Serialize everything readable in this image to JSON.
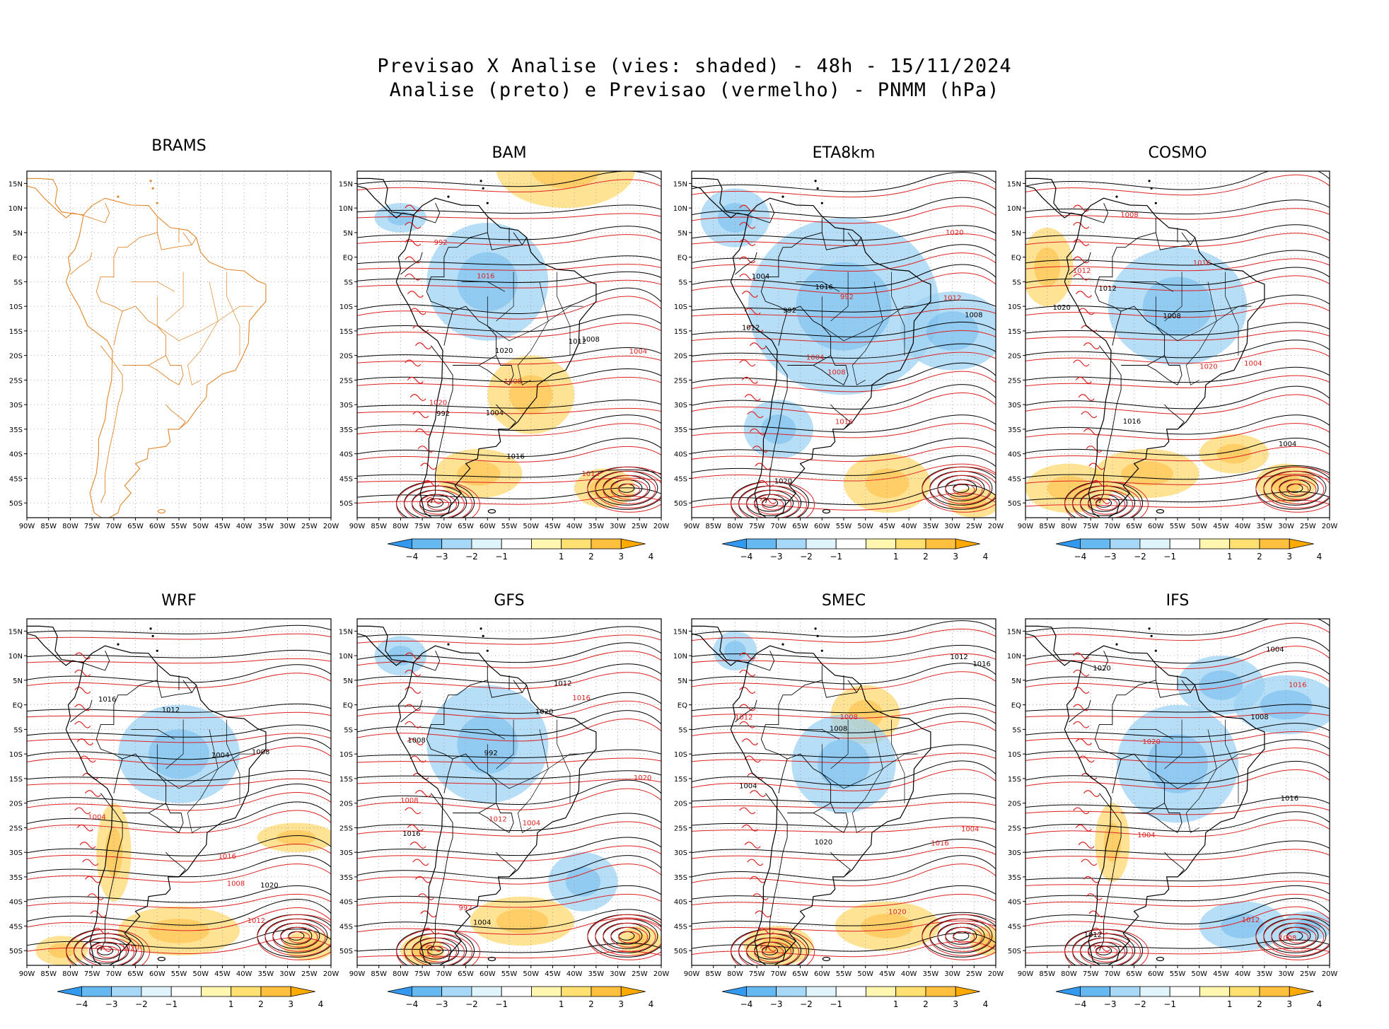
{
  "title": {
    "line1": "Previsao X Analise (vies: shaded) - 48h - 15/11/2024",
    "line2": "Analise (preto) e Previsao (vermelho) - PNMM (hPa)"
  },
  "axes": {
    "lat_labels": [
      "15N",
      "10N",
      "5N",
      "EQ",
      "5S",
      "10S",
      "15S",
      "20S",
      "25S",
      "30S",
      "35S",
      "40S",
      "45S",
      "50S"
    ],
    "lon_labels": [
      "90W",
      "85W",
      "80W",
      "75W",
      "70W",
      "65W",
      "60W",
      "55W",
      "50W",
      "45W",
      "40W",
      "35W",
      "30W",
      "25W",
      "20W"
    ]
  },
  "colorbar": {
    "labels": [
      "-4",
      "-3",
      "-2",
      "-1",
      "1",
      "2",
      "3",
      "4"
    ],
    "colors": [
      "#3399ee",
      "#66b8f0",
      "#a8d8f8",
      "#dff4fb",
      "#ffffff",
      "#fff6b0",
      "#ffe070",
      "#ffc040",
      "#ffaa00"
    ]
  },
  "colors": {
    "analysis": "#000000",
    "forecast": "#dd2222",
    "map_outline_brams": "#e0862a",
    "neg_bias": "#8ccbf2",
    "pos_bias": "#ffd257"
  },
  "panels": [
    {
      "name": "BRAMS",
      "labels": [],
      "has_colorbar": false
    },
    {
      "name": "BAM",
      "labels": [
        "1012",
        "1008",
        "1016",
        "1020",
        "1004",
        "992"
      ],
      "has_colorbar": true
    },
    {
      "name": "ETA8km",
      "labels": [
        "1008",
        "1012",
        "1016",
        "1020",
        "1004",
        "992"
      ],
      "has_colorbar": true
    },
    {
      "name": "COSMO",
      "labels": [
        "1012",
        "1008",
        "1016",
        "1020",
        "1004"
      ],
      "has_colorbar": true
    },
    {
      "name": "WRF",
      "labels": [
        "1012",
        "1008",
        "1016",
        "1020",
        "1004"
      ],
      "has_colorbar": true
    },
    {
      "name": "GFS",
      "labels": [
        "1012",
        "1008",
        "1016",
        "1020",
        "1004",
        "992"
      ],
      "has_colorbar": true
    },
    {
      "name": "SMEC",
      "labels": [
        "1012",
        "1008",
        "1016",
        "1020",
        "1004"
      ],
      "has_colorbar": true
    },
    {
      "name": "IFS",
      "labels": [
        "1012",
        "1008",
        "1016",
        "1020",
        "1004"
      ],
      "has_colorbar": true
    }
  ]
}
